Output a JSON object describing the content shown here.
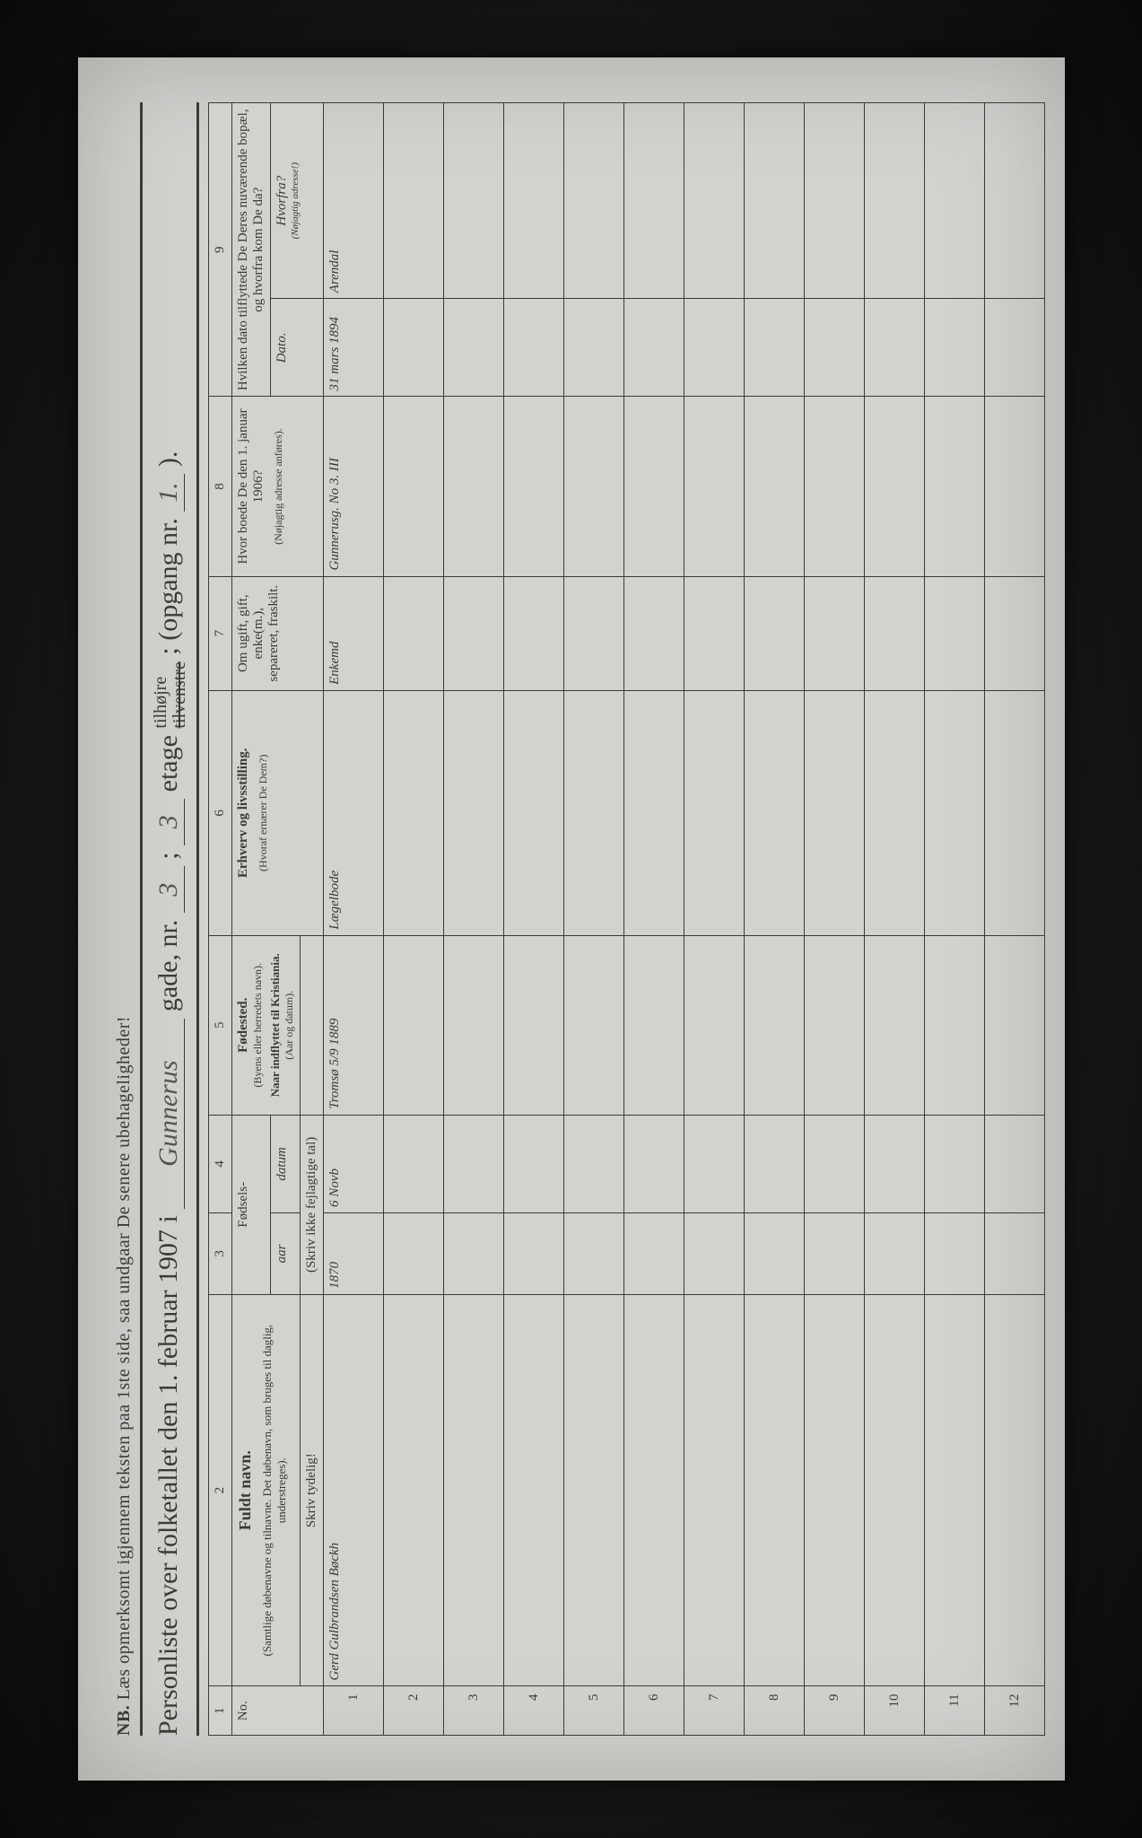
{
  "page": {
    "background_color": "#1a1a1a",
    "paper_color": "#d2d3cf",
    "ink_color": "#3a3a36",
    "handwriting_color": "#55554e",
    "rotation_deg": -90
  },
  "nb_line": {
    "label": "NB.",
    "text": "Læs opmerksomt igjennem teksten paa 1ste side, saa undgaar De senere ubehageligheder!"
  },
  "title": {
    "lead": "Personliste over folketallet den 1. februar 1907 i",
    "street_value": "Gunnerus",
    "gade_label": "gade, nr.",
    "gade_value": "3",
    "semicolon": ";",
    "etage_value": "3",
    "etage_label": "etage",
    "tilhojre": "tilhøjre",
    "tilvenstre_struck": "tilvenstre",
    "opgang_label": "; (opgang nr.",
    "opgang_value": "1.",
    "opgang_close": ")."
  },
  "columns": {
    "nums": [
      "1",
      "2",
      "3",
      "4",
      "5",
      "6",
      "7",
      "8",
      "9"
    ],
    "c1": "No.",
    "c2_title": "Fuldt navn.",
    "c2_sub": "(Samtlige døbenavne og tilnavne. Det døbenavn, som bruges til daglig, understreges).",
    "c34_title": "Fødsels-",
    "c3_sub": "aar",
    "c4_sub": "datum",
    "c34_instr": "(Skriv ikke fejlagtige tal)",
    "c5_title": "Fødested.",
    "c5_sub1": "(Byens eller herredets navn).",
    "c5_sub2": "Naar indflyttet til Kristiania.",
    "c5_sub3": "(Aar og datum).",
    "c6_title": "Erhverv og livsstilling.",
    "c6_sub": "(Hvoraf ernærer De Dem?)",
    "c7_title": "Om ugift, gift, enke(m.), separeret, fraskilt.",
    "c8_title": "Hvor boede De den 1. januar 1906?",
    "c8_sub": "(Nøjagtig adresse anføres).",
    "c9_title": "Hvilken dato tilflyttede De Deres nuværende bopæl, og hvorfra kom De da?",
    "c9_sub_a": "Dato.",
    "c9_sub_b": "Hvorfra?",
    "c9_sub_b2": "(Nøjagtig adresse!)",
    "instr_row2": "Skriv tydelig!"
  },
  "rows": [
    {
      "no": "1",
      "name": "Gerd Gulbrandsen Bøckh",
      "year": "1870",
      "date": "6 Novb",
      "birthplace": "Tromsø\n5/9 1889",
      "occupation": "Lægelbode",
      "status": "Enkemd",
      "addr1906": "Gunnerusg. No 3. III",
      "move_date": "31 mars 1894",
      "move_from": "Arendal"
    },
    {
      "no": "2"
    },
    {
      "no": "3"
    },
    {
      "no": "4"
    },
    {
      "no": "5"
    },
    {
      "no": "6"
    },
    {
      "no": "7"
    },
    {
      "no": "8"
    },
    {
      "no": "9"
    },
    {
      "no": "10"
    },
    {
      "no": "11"
    },
    {
      "no": "12"
    }
  ],
  "col_widths_pct": [
    3,
    24,
    5,
    6,
    11,
    15,
    7,
    11,
    6,
    12
  ]
}
